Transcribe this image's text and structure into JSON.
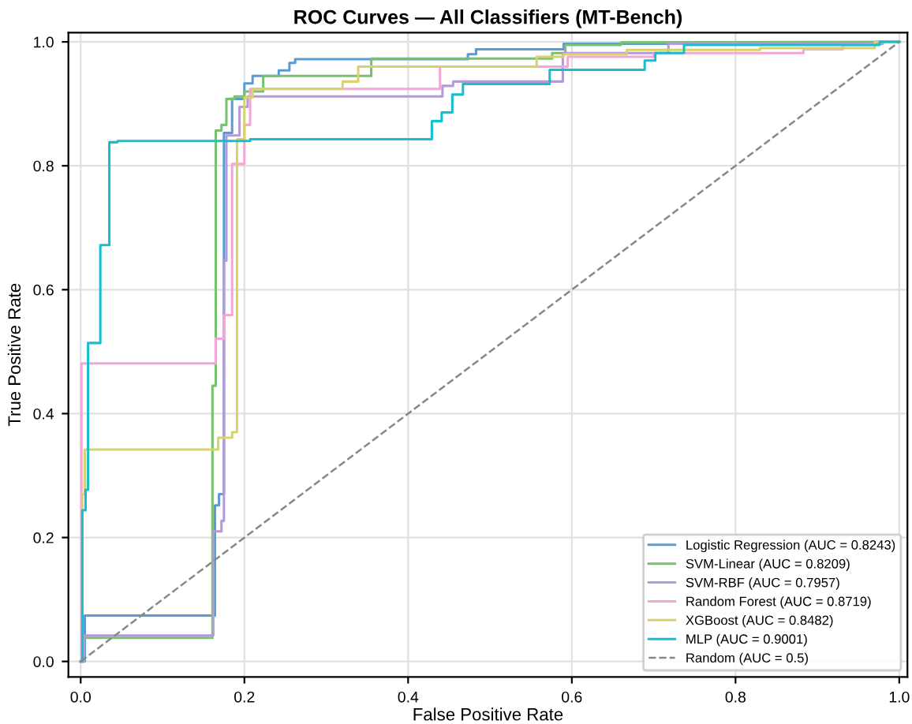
{
  "chart_data": {
    "type": "line",
    "title": "ROC Curves — All Classifiers (MT-Bench)",
    "xlabel": "False Positive Rate",
    "ylabel": "True Positive Rate",
    "xlim": [
      -0.015,
      1.01
    ],
    "ylim": [
      -0.025,
      1.015
    ],
    "xticks": [
      {
        "value": 0,
        "label": "0.0"
      },
      0.2,
      0.4,
      0.6,
      0.8,
      {
        "value": 1,
        "label": "1.0"
      }
    ],
    "yticks": [
      {
        "value": 0,
        "label": "0.0"
      },
      0.2,
      0.4,
      0.6,
      0.8,
      {
        "value": 1,
        "label": "1.0"
      }
    ],
    "grid": true,
    "legend": "bottom right",
    "line_style": "solid",
    "marker": "none",
    "series": [
      {
        "name": "Logistic Regression (AUC = 0.8243)",
        "color": "#5b9bd5",
        "x": [
          0,
          0.005,
          0.005,
          0.164,
          0.164,
          0.169,
          0.169,
          0.175,
          0.175,
          0.185,
          0.185,
          0.2,
          0.2,
          0.21,
          0.21,
          0.242,
          0.242,
          0.255,
          0.255,
          0.262,
          0.262,
          0.473,
          0.473,
          0.483,
          0.483,
          0.59,
          0.59,
          0.97,
          0.97,
          1
        ],
        "values": [
          0,
          0,
          0.074,
          0.074,
          0.252,
          0.252,
          0.27,
          0.27,
          0.853,
          0.853,
          0.908,
          0.908,
          0.933,
          0.933,
          0.945,
          0.945,
          0.954,
          0.954,
          0.966,
          0.966,
          0.972,
          0.972,
          0.98,
          0.98,
          0.988,
          0.988,
          0.997,
          0.997,
          1,
          1
        ]
      },
      {
        "name": "SVM-Linear (AUC = 0.8209)",
        "color": "#77c26f",
        "x": [
          0,
          0.004,
          0.004,
          0.161,
          0.161,
          0.165,
          0.165,
          0.172,
          0.172,
          0.178,
          0.178,
          0.188,
          0.188,
          0.2,
          0.2,
          0.223,
          0.223,
          0.355,
          0.355,
          0.576,
          0.576,
          0.592,
          0.592,
          0.66,
          0.66,
          1
        ],
        "values": [
          0,
          0,
          0.038,
          0.038,
          0.445,
          0.445,
          0.857,
          0.857,
          0.866,
          0.866,
          0.908,
          0.908,
          0.912,
          0.912,
          0.92,
          0.92,
          0.945,
          0.945,
          0.973,
          0.973,
          0.982,
          0.982,
          0.995,
          0.995,
          0.999,
          1
        ]
      },
      {
        "name": "SVM-RBF (AUC = 0.7957)",
        "color": "#b59ad8",
        "x": [
          0,
          0.004,
          0.004,
          0.162,
          0.162,
          0.172,
          0.172,
          0.175,
          0.175,
          0.178,
          0.178,
          0.194,
          0.194,
          0.204,
          0.204,
          0.442,
          0.442,
          0.455,
          0.455,
          0.589,
          0.589,
          0.718,
          0.718,
          0.98,
          0.98,
          1
        ],
        "values": [
          0,
          0,
          0.042,
          0.042,
          0.21,
          0.21,
          0.227,
          0.227,
          0.647,
          0.647,
          0.849,
          0.849,
          0.895,
          0.895,
          0.912,
          0.912,
          0.929,
          0.929,
          0.936,
          0.936,
          0.982,
          0.982,
          0.997,
          0.997,
          1,
          1
        ]
      },
      {
        "name": "Random Forest (AUC = 0.8719)",
        "color": "#f4a6d7",
        "x": [
          0,
          0.001,
          0.001,
          0.165,
          0.165,
          0.175,
          0.175,
          0.185,
          0.185,
          0.2,
          0.2,
          0.207,
          0.207,
          0.439,
          0.439,
          0.595,
          0.595,
          0.7,
          0.7,
          0.883,
          0.883,
          0.931,
          0.931,
          0.97,
          0.97,
          1
        ],
        "values": [
          0,
          0,
          0.481,
          0.481,
          0.521,
          0.521,
          0.559,
          0.559,
          0.803,
          0.803,
          0.866,
          0.866,
          0.924,
          0.924,
          0.96,
          0.96,
          0.976,
          0.976,
          0.982,
          0.982,
          0.988,
          0.988,
          0.995,
          0.995,
          1,
          1
        ]
      },
      {
        "name": "XGBoost (AUC = 0.8482)",
        "color": "#d7d36a",
        "x": [
          0,
          0.002,
          0.002,
          0.005,
          0.005,
          0.168,
          0.168,
          0.185,
          0.185,
          0.191,
          0.191,
          0.2,
          0.2,
          0.21,
          0.21,
          0.32,
          0.32,
          0.339,
          0.339,
          0.557,
          0.557,
          0.59,
          0.59,
          0.667,
          0.667,
          0.83,
          0.83,
          0.97,
          0.97,
          1
        ],
        "values": [
          0,
          0,
          0.27,
          0.27,
          0.342,
          0.342,
          0.361,
          0.361,
          0.37,
          0.37,
          0.843,
          0.843,
          0.91,
          0.91,
          0.924,
          0.924,
          0.936,
          0.936,
          0.96,
          0.96,
          0.976,
          0.976,
          0.98,
          0.98,
          0.987,
          0.987,
          0.99,
          0.99,
          1,
          1
        ]
      },
      {
        "name": "MLP (AUC = 0.9001)",
        "color": "#17becf",
        "x": [
          0,
          0.002,
          0.002,
          0.006,
          0.006,
          0.009,
          0.009,
          0.024,
          0.024,
          0.035,
          0.035,
          0.045,
          0.045,
          0.207,
          0.207,
          0.429,
          0.429,
          0.441,
          0.441,
          0.454,
          0.454,
          0.467,
          0.467,
          0.573,
          0.573,
          0.689,
          0.689,
          0.702,
          0.702,
          0.737,
          0.737,
          0.976,
          0.976,
          1
        ],
        "values": [
          0,
          0,
          0.244,
          0.244,
          0.277,
          0.277,
          0.514,
          0.514,
          0.672,
          0.672,
          0.838,
          0.838,
          0.84,
          0.84,
          0.843,
          0.843,
          0.872,
          0.872,
          0.886,
          0.886,
          0.915,
          0.915,
          0.932,
          0.932,
          0.955,
          0.955,
          0.97,
          0.97,
          0.982,
          0.982,
          0.995,
          0.995,
          1,
          1
        ]
      },
      {
        "name": "Random (AUC = 0.5)",
        "color": "#888888",
        "line_style": "dashed",
        "x": [
          0,
          1
        ],
        "values": [
          0,
          1
        ]
      }
    ]
  }
}
